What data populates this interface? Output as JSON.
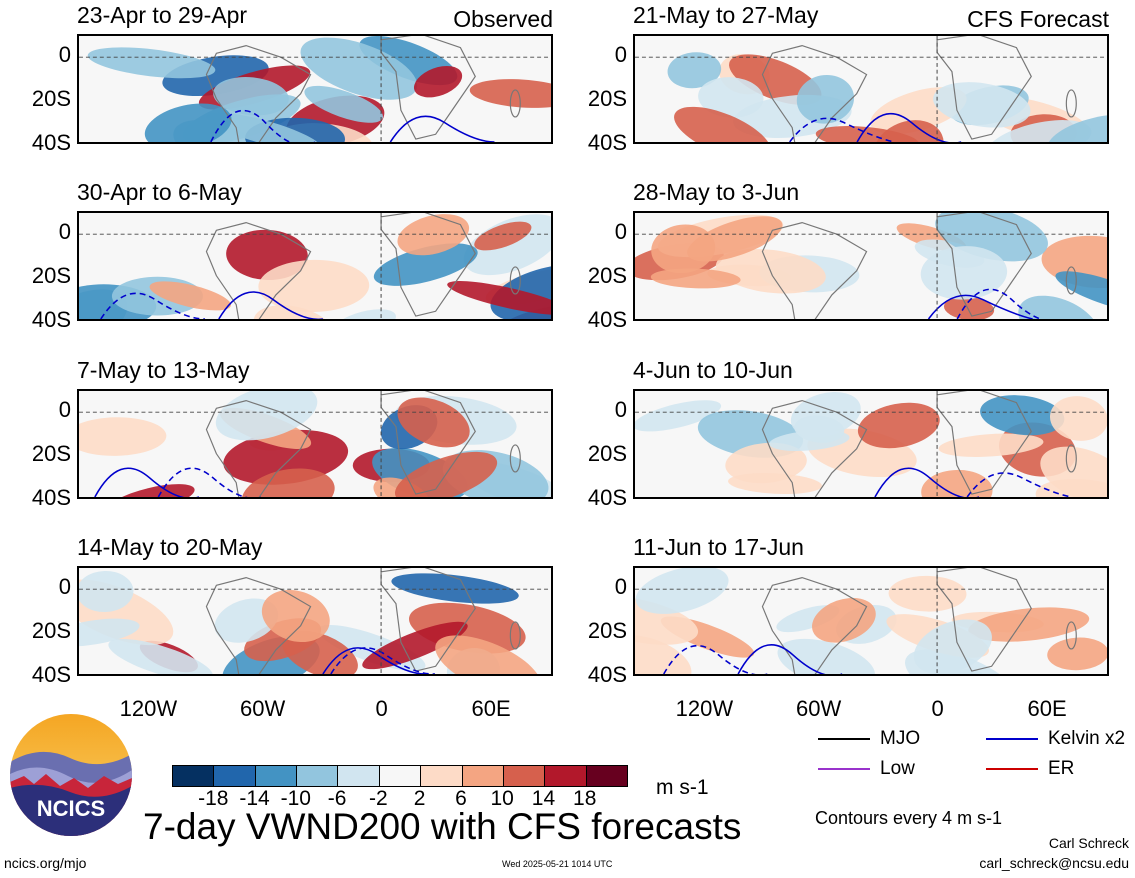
{
  "observed_label": "Observed",
  "forecast_label": "CFS Forecast",
  "panels": [
    {
      "title": "23-Apr to 29-Apr"
    },
    {
      "title": "30-Apr to 6-May"
    },
    {
      "title": "7-May to 13-May"
    },
    {
      "title": "14-May to 20-May"
    },
    {
      "title": "21-May to 27-May"
    },
    {
      "title": "28-May to 3-Jun"
    },
    {
      "title": "4-Jun to 10-Jun"
    },
    {
      "title": "11-Jun to 17-Jun"
    }
  ],
  "y_ticks": [
    "0",
    "20S",
    "40S"
  ],
  "x_ticks": [
    "120W",
    "60W",
    "0",
    "60E"
  ],
  "colorbar": {
    "labels": [
      "-18",
      "-14",
      "-10",
      "-6",
      "-2",
      "2",
      "6",
      "10",
      "14",
      "18"
    ],
    "unit": "m s-1",
    "colors": [
      "#053061",
      "#2166ac",
      "#4393c3",
      "#92c5de",
      "#d1e5f0",
      "#f7f7f7",
      "#fddbc7",
      "#f4a582",
      "#d6604d",
      "#b2182b",
      "#67001f"
    ]
  },
  "legend": {
    "mjo": "MJO",
    "kelvin": "Kelvin x2",
    "low": "Low",
    "er": "ER",
    "colors": {
      "mjo": "#000000",
      "kelvin": "#0000cc",
      "low": "#9933cc",
      "er": "#cc0000"
    }
  },
  "contours_note": "Contours every 4 m s-1",
  "main_title": "7-day VWND200 with CFS forecasts",
  "logo_text": "NCICS",
  "footer_left": "ncics.org/mjo",
  "timestamp": "Wed 2025-05-21 1014 UTC",
  "author_name": "Carl Schreck",
  "author_email": "carl_schreck@ncsu.edu",
  "chart_data": {
    "type": "heatmap",
    "title": "7-day VWND200 with CFS forecasts",
    "variable": "200-hPa meridional wind anomaly",
    "unit": "m s-1",
    "x_ticks": [
      "120W",
      "60W",
      "0",
      "60E"
    ],
    "y_ticks": [
      "0",
      "20S",
      "40S"
    ],
    "color_levels": [
      -18,
      -14,
      -10,
      -6,
      -2,
      2,
      6,
      10,
      14,
      18
    ],
    "contour_interval": "4 m s-1",
    "observed_periods": [
      "23-Apr to 29-Apr",
      "30-Apr to 6-May",
      "7-May to 13-May",
      "14-May to 20-May"
    ],
    "forecast_periods": [
      "21-May to 27-May",
      "28-May to 3-Jun",
      "4-Jun to 10-Jun",
      "11-Jun to 17-Jun"
    ]
  }
}
